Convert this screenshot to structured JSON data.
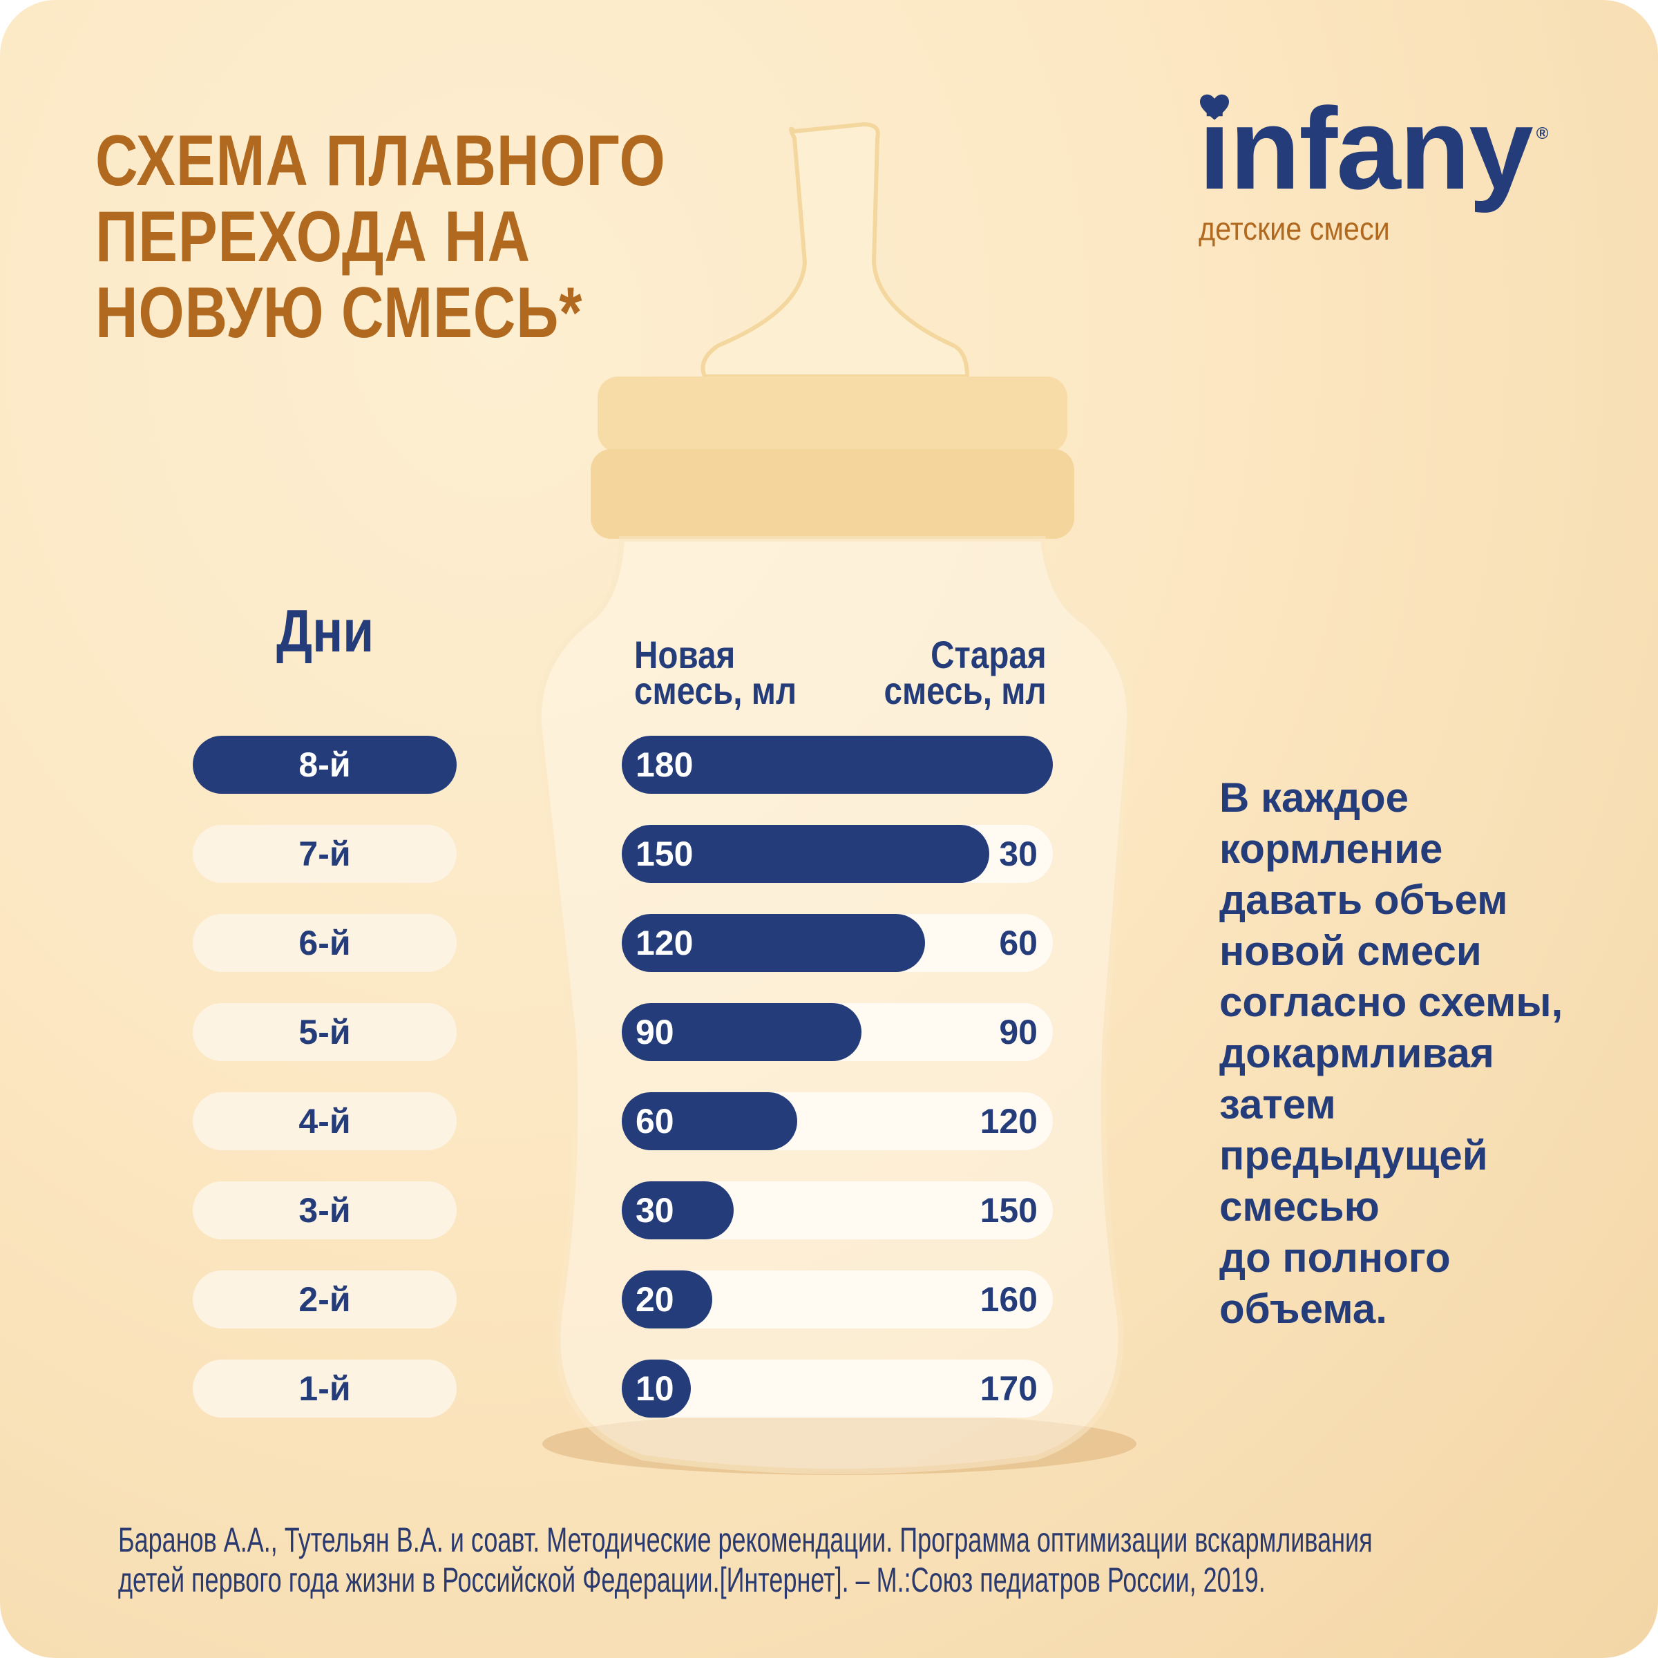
{
  "title": "СХЕМА ПЛАВНОГО\nПЕРЕХОДА НА\nНОВУЮ СМЕСЬ*",
  "logo": {
    "word": "infany",
    "registered": "®",
    "subtitle": "детские смеси"
  },
  "days_header": "Дни",
  "columns": {
    "new": "Новая\nсмесь, мл",
    "old": "Старая\nсмесь, мл"
  },
  "max_volume_ml": 180,
  "rows": [
    {
      "day": "8-й",
      "new": 180,
      "old": 0,
      "active": true
    },
    {
      "day": "7-й",
      "new": 150,
      "old": 30
    },
    {
      "day": "6-й",
      "new": 120,
      "old": 60
    },
    {
      "day": "5-й",
      "new": 90,
      "old": 90
    },
    {
      "day": "4-й",
      "new": 60,
      "old": 120
    },
    {
      "day": "3-й",
      "new": 30,
      "old": 150
    },
    {
      "day": "2-й",
      "new": 20,
      "old": 160
    },
    {
      "day": "1-й",
      "new": 10,
      "old": 170
    }
  ],
  "instruction": "В каждое\nкормление\nдавать объем\nновой смеси\nсогласно схемы,\nдокармливая\nзатем\nпредыдущей\nсмесью\nдо полного\nобъема.",
  "footnote": "Баранов А.А., Тутельян В.А. и соавт. Методические рекомендации. Программа оптимизации вскармливания\nдетей первого года жизни в Российской Федерации.[Интернет]. – М.:Союз педиатров России, 2019.",
  "colors": {
    "navy": "#243d7a",
    "brown": "#b0691e",
    "background": "#fce7c2"
  }
}
